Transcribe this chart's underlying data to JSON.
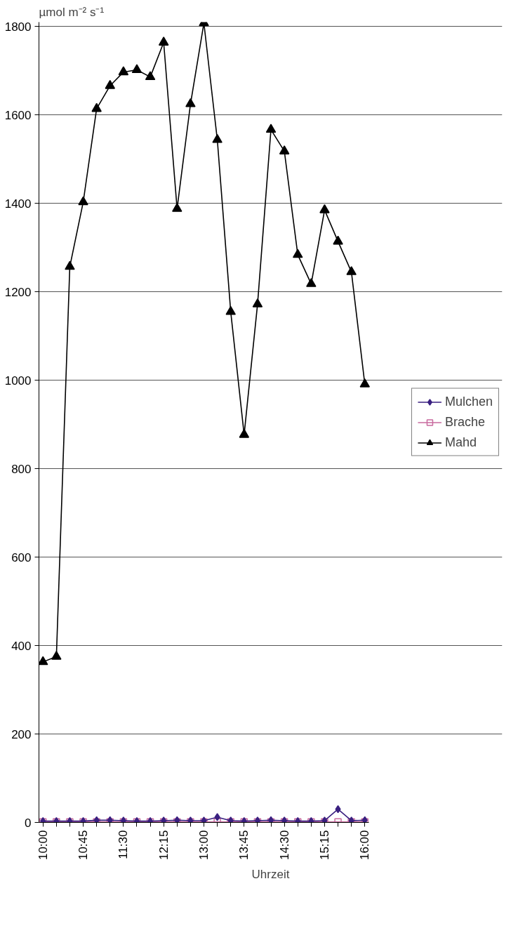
{
  "chart_data": {
    "type": "line",
    "ylabel": "µmol m⁻² s⁻¹",
    "xlabel": "Uhrzeit",
    "categories": [
      "10:00",
      null,
      null,
      "10:45",
      null,
      null,
      "11:30",
      null,
      null,
      "12:15",
      null,
      null,
      "13:00",
      null,
      null,
      "13:45",
      null,
      null,
      "14:30",
      null,
      null,
      "15:15",
      null,
      null,
      "16:00"
    ],
    "series": [
      {
        "name": "Mulchen",
        "color": "#3a2080",
        "marker": "diamond",
        "values": [
          3,
          3,
          3,
          3,
          5,
          5,
          4,
          3,
          3,
          4,
          5,
          4,
          4,
          12,
          4,
          3,
          4,
          5,
          4,
          3,
          3,
          4,
          30,
          4,
          5
        ]
      },
      {
        "name": "Brache",
        "color": "#c86a9e",
        "marker": "square",
        "values": [
          1,
          1,
          1,
          1,
          1,
          1,
          1,
          1,
          1,
          1,
          1,
          1,
          1,
          1,
          1,
          1,
          1,
          1,
          1,
          1,
          1,
          1,
          1,
          1,
          1
        ]
      },
      {
        "name": "Mahd",
        "color": "#000000",
        "marker": "triangle",
        "values": [
          363,
          375,
          1257,
          1403,
          1614,
          1666,
          1697,
          1702,
          1686,
          1764,
          1388,
          1625,
          1808,
          1544,
          1155,
          877,
          1172,
          1567,
          1518,
          1284,
          1218,
          1385,
          1314,
          1245,
          991
        ]
      }
    ],
    "ylim": [
      0,
      1810
    ],
    "yticks": [
      0,
      200,
      400,
      600,
      800,
      1000,
      1200,
      1400,
      1600,
      1800
    ],
    "grid": "y",
    "legend": "right"
  }
}
